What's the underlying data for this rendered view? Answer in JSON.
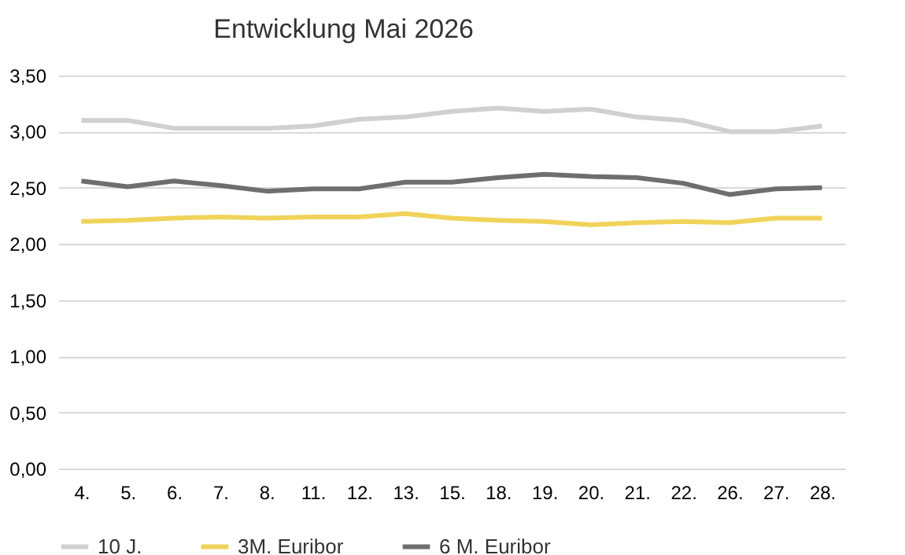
{
  "chart_data": {
    "type": "line",
    "title": "Entwicklung Mai 2026",
    "categories": [
      "4.",
      "5.",
      "6.",
      "7.",
      "8.",
      "11.",
      "12.",
      "13.",
      "15.",
      "18.",
      "19.",
      "20.",
      "21.",
      "22.",
      "26.",
      "27.",
      "28."
    ],
    "series": [
      {
        "name": "10 J.",
        "color": "#d0d0d0",
        "values": [
          3.1,
          3.1,
          3.03,
          3.03,
          3.03,
          3.05,
          3.11,
          3.13,
          3.18,
          3.21,
          3.18,
          3.2,
          3.13,
          3.1,
          3.0,
          3.0,
          3.05
        ]
      },
      {
        "name": "3M. Euribor",
        "color": "#f0d35a",
        "values": [
          2.2,
          2.21,
          2.23,
          2.24,
          2.23,
          2.24,
          2.24,
          2.27,
          2.23,
          2.21,
          2.2,
          2.17,
          2.19,
          2.2,
          2.19,
          2.23,
          2.23
        ]
      },
      {
        "name": "6 M. Euribor",
        "color": "#6e6e6e",
        "values": [
          2.56,
          2.51,
          2.56,
          2.52,
          2.47,
          2.49,
          2.49,
          2.55,
          2.55,
          2.59,
          2.62,
          2.6,
          2.59,
          2.54,
          2.44,
          2.49,
          2.5
        ]
      }
    ],
    "ylim": [
      0,
      3.5
    ],
    "yticks": [
      {
        "value": 0,
        "label": "0,00"
      },
      {
        "value": 0.5,
        "label": "0,50"
      },
      {
        "value": 1,
        "label": "1,00"
      },
      {
        "value": 1.5,
        "label": "1,50"
      },
      {
        "value": 2,
        "label": "2,00"
      },
      {
        "value": 2.5,
        "label": "2,50"
      },
      {
        "value": 3,
        "label": "3,00"
      },
      {
        "value": 3.5,
        "label": "3,50"
      }
    ],
    "grid": "y",
    "legend": "bottom"
  }
}
